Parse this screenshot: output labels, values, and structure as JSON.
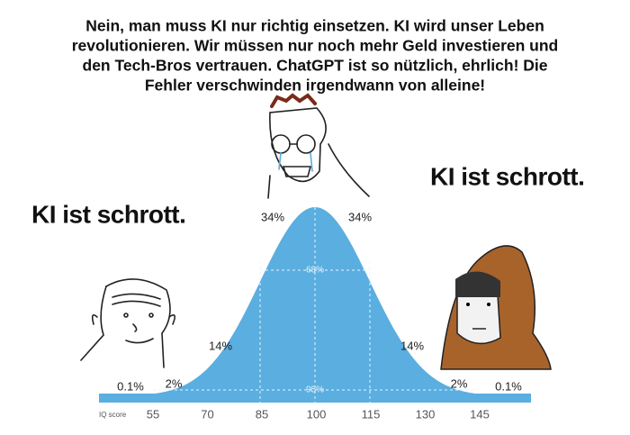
{
  "top_text": [
    "Nein, man muss KI nur richtig einsetzen. KI wird unser Leben",
    "revolutionieren. Wir müssen nur noch mehr Geld investieren und",
    "den Tech-Bros vertrauen. ChatGPT ist so nützlich, ehrlich! Die",
    "Fehler verschwinden irgendwann von alleine!"
  ],
  "left_label": "KI ist schrott.",
  "right_label": "KI ist schrott.",
  "percent_labels": [
    "0.1%",
    "2%",
    "14%",
    "34%",
    "34%",
    "14%",
    "2%",
    "0.1%"
  ],
  "band_labels": [
    "68%",
    "95%"
  ],
  "axis_label": "IQ score",
  "axis_ticks": [
    "55",
    "70",
    "85",
    "100",
    "115",
    "130",
    "145"
  ]
}
